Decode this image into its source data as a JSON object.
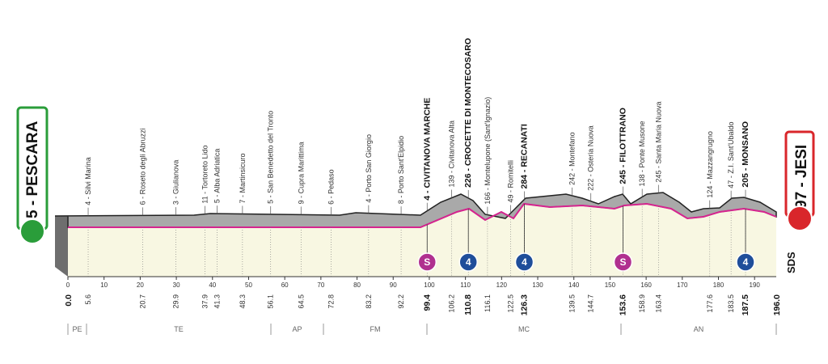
{
  "start": {
    "label": "5 - PESCARA",
    "km": "0.0"
  },
  "finish": {
    "label": "97 - JESI",
    "km": "196.0"
  },
  "logo": "SDS",
  "km_ticks": [
    0,
    10,
    20,
    30,
    40,
    50,
    60,
    70,
    80,
    90,
    100,
    110,
    120,
    130,
    140,
    150,
    160,
    170,
    180,
    190
  ],
  "waypoints": [
    {
      "label": "4 - Silvi Marina",
      "km": "5.6"
    },
    {
      "label": "6 - Roseto degli Abruzzi",
      "km": "20.7"
    },
    {
      "label": "3 - Giulianova",
      "km": "29.9"
    },
    {
      "label": "11 - Tortoreto Lido",
      "km": "37.9"
    },
    {
      "label": "5 - Alba Adriatica",
      "km": "41.3"
    },
    {
      "label": "7 - Martinsicuro",
      "km": "48.3"
    },
    {
      "label": "5 - San Benedetto del Tronto",
      "km": "56.1"
    },
    {
      "label": "9 - Cupra Marittima",
      "km": "64.5"
    },
    {
      "label": "6 - Pedaso",
      "km": "72.8"
    },
    {
      "label": "4 - Porto San Giorgio",
      "km": "83.2"
    },
    {
      "label": "8 - Porto Sant'Elpidio",
      "km": "92.2"
    },
    {
      "label": "4 - CIVITANOVA MARCHE",
      "km": "99.4",
      "bold": true,
      "marker": "S"
    },
    {
      "label": "139 - Civitanova Alta",
      "km": "106.2"
    },
    {
      "label": "226 - CROCETTE DI MONTECOSARO",
      "km": "110.8",
      "bold": true,
      "marker": "4"
    },
    {
      "label": "166 - Montelupone (Sant'Ignazio)",
      "km": "116.1"
    },
    {
      "label": "49 - Romitelli",
      "km": "122.5"
    },
    {
      "label": "284 - RECANATI",
      "km": "126.3",
      "bold": true,
      "marker": "4"
    },
    {
      "label": "242 - Montefano",
      "km": "139.5"
    },
    {
      "label": "222 - Osteria Nuova",
      "km": "144.7"
    },
    {
      "label": "245 - FILOTTRANO",
      "km": "153.6",
      "bold": true,
      "marker": "S"
    },
    {
      "label": "138 - Ponte Musone",
      "km": "158.9"
    },
    {
      "label": "245 - Santa Maria Nuova",
      "km": "163.4"
    },
    {
      "label": "124 - Mazzangrugno",
      "km": "177.6"
    },
    {
      "label": "47 - Z.I. Sant'Ubaldo",
      "km": "183.5"
    },
    {
      "label": "205 - MONSANO",
      "km": "187.5",
      "bold": true,
      "marker": "4"
    }
  ],
  "regions": [
    "PE",
    "TE",
    "AP",
    "FM",
    "MC",
    "AN"
  ]
}
